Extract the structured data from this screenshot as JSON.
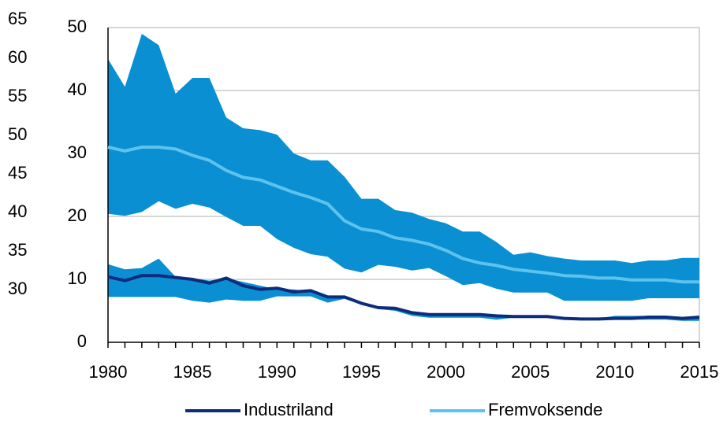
{
  "chart_data": {
    "type": "line",
    "x": [
      1980,
      1981,
      1982,
      1983,
      1984,
      1985,
      1986,
      1987,
      1988,
      1989,
      1990,
      1991,
      1992,
      1993,
      1994,
      1995,
      1996,
      1997,
      1998,
      1999,
      2000,
      2001,
      2002,
      2003,
      2004,
      2005,
      2006,
      2007,
      2008,
      2009,
      2010,
      2011,
      2012,
      2013,
      2014,
      2015
    ],
    "series": [
      {
        "name": "Industriland",
        "color": "#0d2d7c",
        "values": [
          10.4,
          9.8,
          10.6,
          10.6,
          10.3,
          10.0,
          9.4,
          10.2,
          9.0,
          8.4,
          8.6,
          8.0,
          8.2,
          7.2,
          7.2,
          6.2,
          5.5,
          5.4,
          4.7,
          4.4,
          4.4,
          4.4,
          4.4,
          4.2,
          4.1,
          4.1,
          4.1,
          3.8,
          3.7,
          3.7,
          3.8,
          3.8,
          4.0,
          4.0,
          3.8,
          4.0
        ]
      },
      {
        "name": "Fremvoksende",
        "color": "#5ec3ec",
        "values": [
          31.0,
          30.4,
          31.0,
          31.0,
          30.7,
          29.7,
          28.9,
          27.3,
          26.2,
          25.8,
          24.8,
          23.8,
          23.0,
          22.0,
          19.3,
          18.0,
          17.6,
          16.6,
          16.2,
          15.6,
          14.6,
          13.3,
          12.6,
          12.2,
          11.6,
          11.3,
          11.0,
          10.6,
          10.5,
          10.2,
          10.2,
          9.9,
          9.9,
          9.9,
          9.6,
          9.6
        ]
      }
    ],
    "bands": [
      {
        "color": "#0a8fd3",
        "upper": [
          45.0,
          40.6,
          49.0,
          47.2,
          39.5,
          42.0,
          42.0,
          35.7,
          34.0,
          33.7,
          33.0,
          30.0,
          28.9,
          28.9,
          26.3,
          22.8,
          22.8,
          21.0,
          20.6,
          19.6,
          18.9,
          17.6,
          17.6,
          15.9,
          13.9,
          14.3,
          13.7,
          13.3,
          13.0,
          13.0,
          13.0,
          12.6,
          13.0,
          13.0,
          13.4,
          13.4
        ],
        "lower": [
          20.4,
          20.1,
          20.7,
          22.4,
          21.2,
          22.0,
          21.4,
          19.9,
          18.5,
          18.5,
          16.4,
          15.0,
          14.0,
          13.6,
          11.7,
          11.1,
          12.3,
          12.0,
          11.4,
          11.8,
          10.5,
          9.1,
          9.4,
          8.5,
          7.9,
          7.9,
          7.9,
          6.6,
          6.6,
          6.6,
          6.6,
          6.6,
          7.0,
          7.0,
          7.0,
          7.0
        ]
      },
      {
        "color": "#0a8fd3",
        "upper": [
          12.4,
          11.6,
          11.8,
          13.3,
          10.4,
          10.2,
          9.8,
          10.2,
          9.6,
          9.0,
          8.4,
          8.4,
          8.0,
          7.0,
          7.4,
          6.2,
          5.4,
          5.2,
          4.6,
          4.3,
          4.3,
          4.3,
          4.3,
          4.1,
          4.0,
          4.0,
          4.0,
          3.8,
          3.8,
          3.8,
          4.2,
          4.2,
          4.2,
          4.2,
          4.0,
          4.0
        ],
        "lower": [
          7.2,
          7.2,
          7.2,
          7.2,
          7.2,
          6.6,
          6.3,
          6.8,
          6.6,
          6.6,
          7.3,
          7.3,
          7.3,
          6.3,
          6.9,
          6.0,
          5.3,
          5.0,
          4.2,
          3.9,
          3.9,
          3.9,
          3.9,
          3.6,
          3.9,
          3.9,
          3.9,
          3.6,
          3.6,
          3.6,
          3.6,
          3.6,
          3.6,
          3.6,
          3.4,
          3.4
        ]
      }
    ],
    "xlim": [
      1980,
      2015
    ],
    "xticks": [
      1980,
      1985,
      1990,
      1995,
      2000,
      2005,
      2010,
      2015
    ],
    "ylim": [
      0,
      50
    ],
    "yticks": [
      0,
      10,
      20,
      30,
      40,
      50
    ],
    "y2lim": [
      23.16,
      63.98
    ],
    "y2ticks": [
      30,
      35,
      40,
      45,
      50,
      55,
      60,
      65
    ],
    "grid": true,
    "legend": "bottom"
  }
}
